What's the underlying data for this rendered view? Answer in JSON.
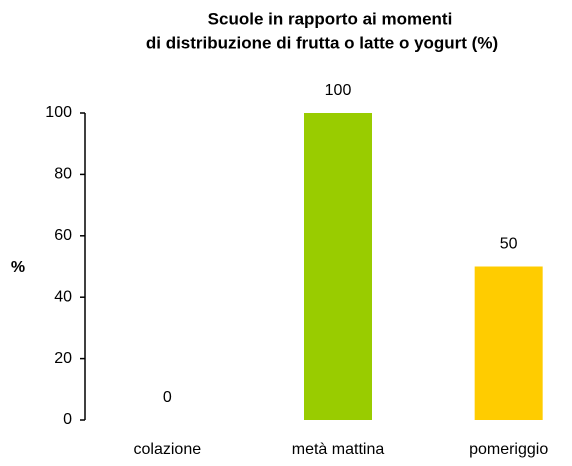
{
  "chart_data": {
    "type": "bar",
    "title": [
      "Scuole in rapporto ai momenti",
      "di distribuzione di frutta o latte o yogurt (%)"
    ],
    "y_label": "%",
    "categories": [
      "colazione",
      "metà mattina",
      "pomeriggio"
    ],
    "values": [
      0,
      100,
      50
    ],
    "colors": [
      null,
      "#99cc00",
      "#ffcc00"
    ],
    "ylim": [
      0,
      100
    ],
    "yticks": [
      0,
      20,
      40,
      60,
      80,
      100
    ],
    "grid": false
  }
}
